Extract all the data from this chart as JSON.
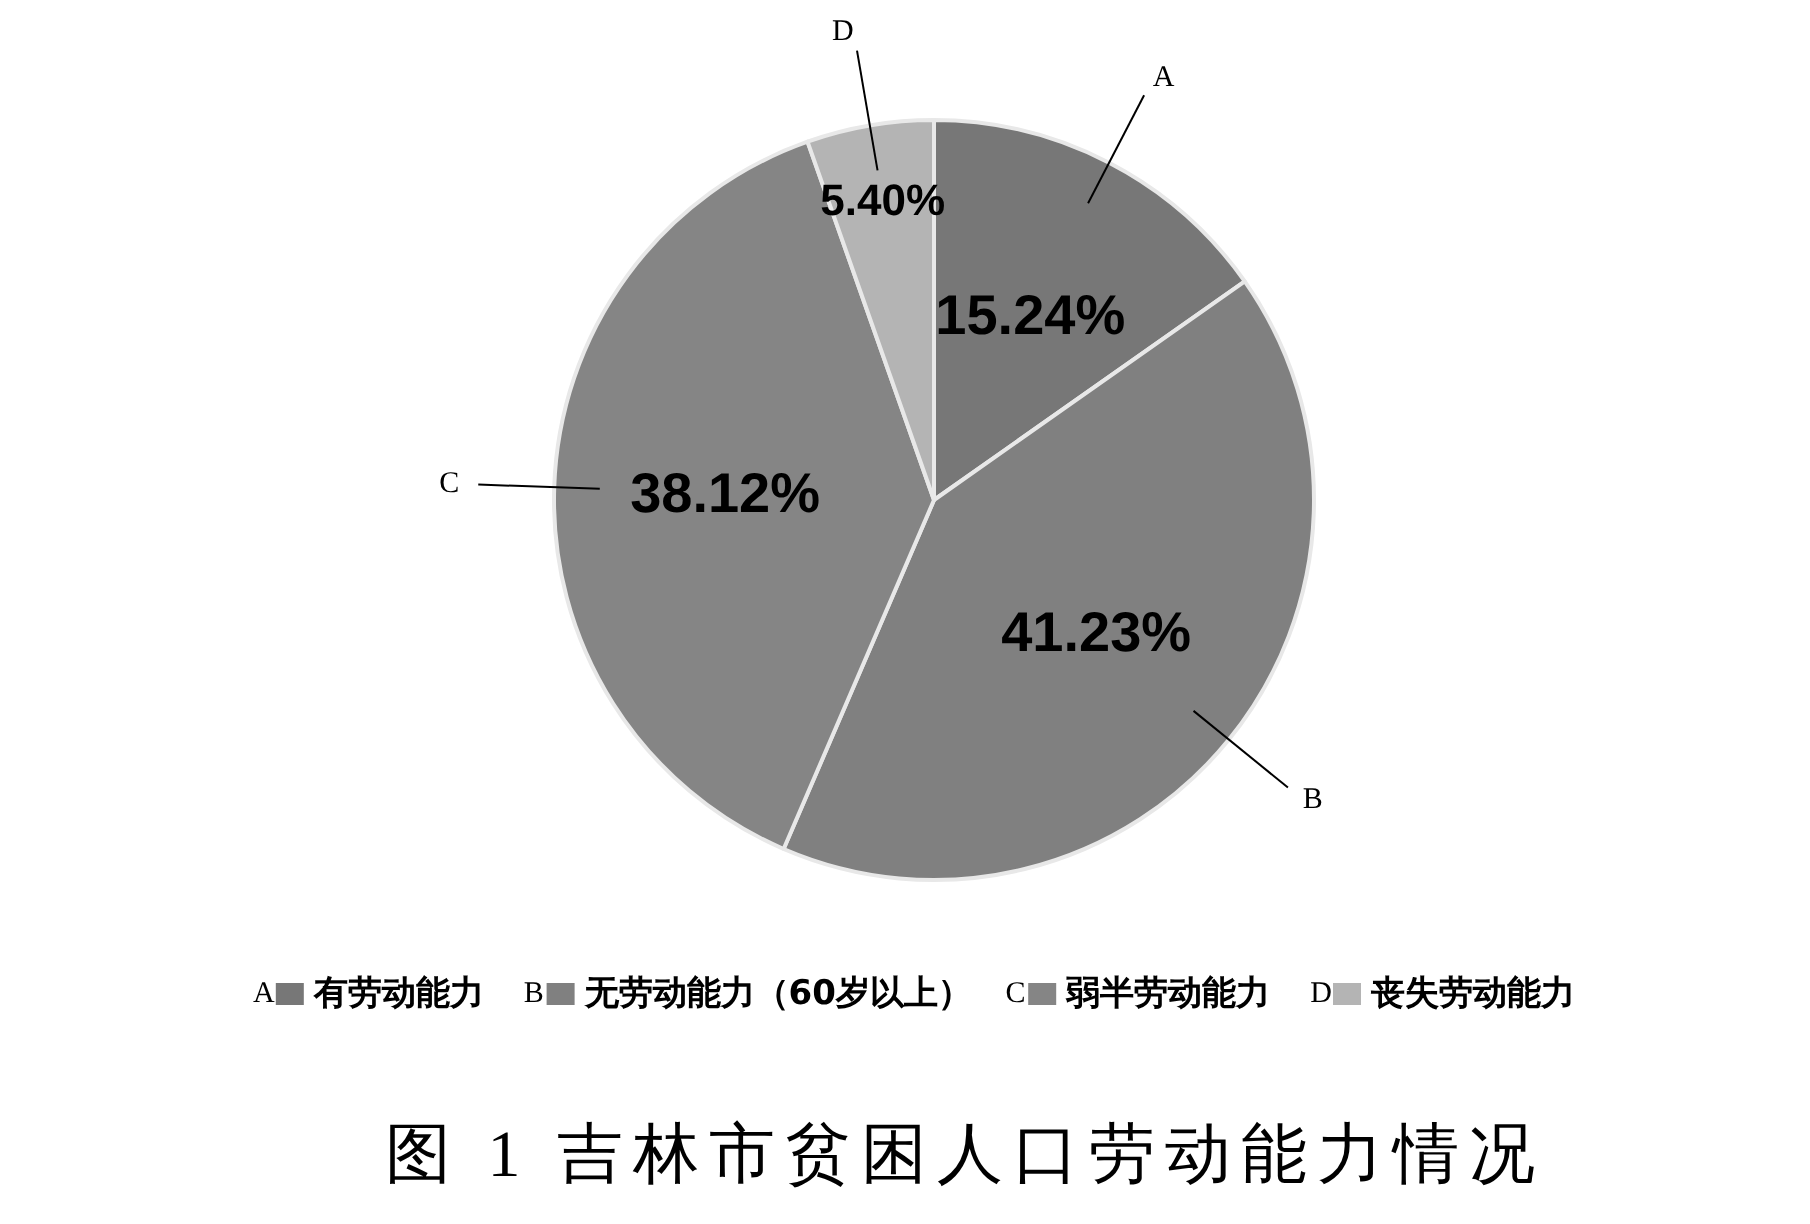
{
  "chart_data": {
    "type": "pie",
    "title": "图 1 吉林市贫困人口劳动能力情况",
    "categories": [
      "有劳动能力",
      "无劳动能力（60岁以上）",
      "弱半劳动能力",
      "丧失劳动能力"
    ],
    "values": [
      15.24,
      41.23,
      38.12,
      5.4
    ],
    "colors": [
      "#777777",
      "#808080",
      "#858585",
      "#b4b4b4"
    ],
    "value_labels": [
      "15.24%",
      "41.23%",
      "38.12%",
      "5.40%"
    ],
    "legend": "bottom",
    "annotations": [
      {
        "text": "A",
        "x": "有劳动能力"
      },
      {
        "text": "B",
        "x": "无劳动能力（60岁以上）"
      },
      {
        "text": "C",
        "x": "弱半劳动能力"
      },
      {
        "text": "D",
        "x": "丧失劳动能力"
      }
    ]
  }
}
